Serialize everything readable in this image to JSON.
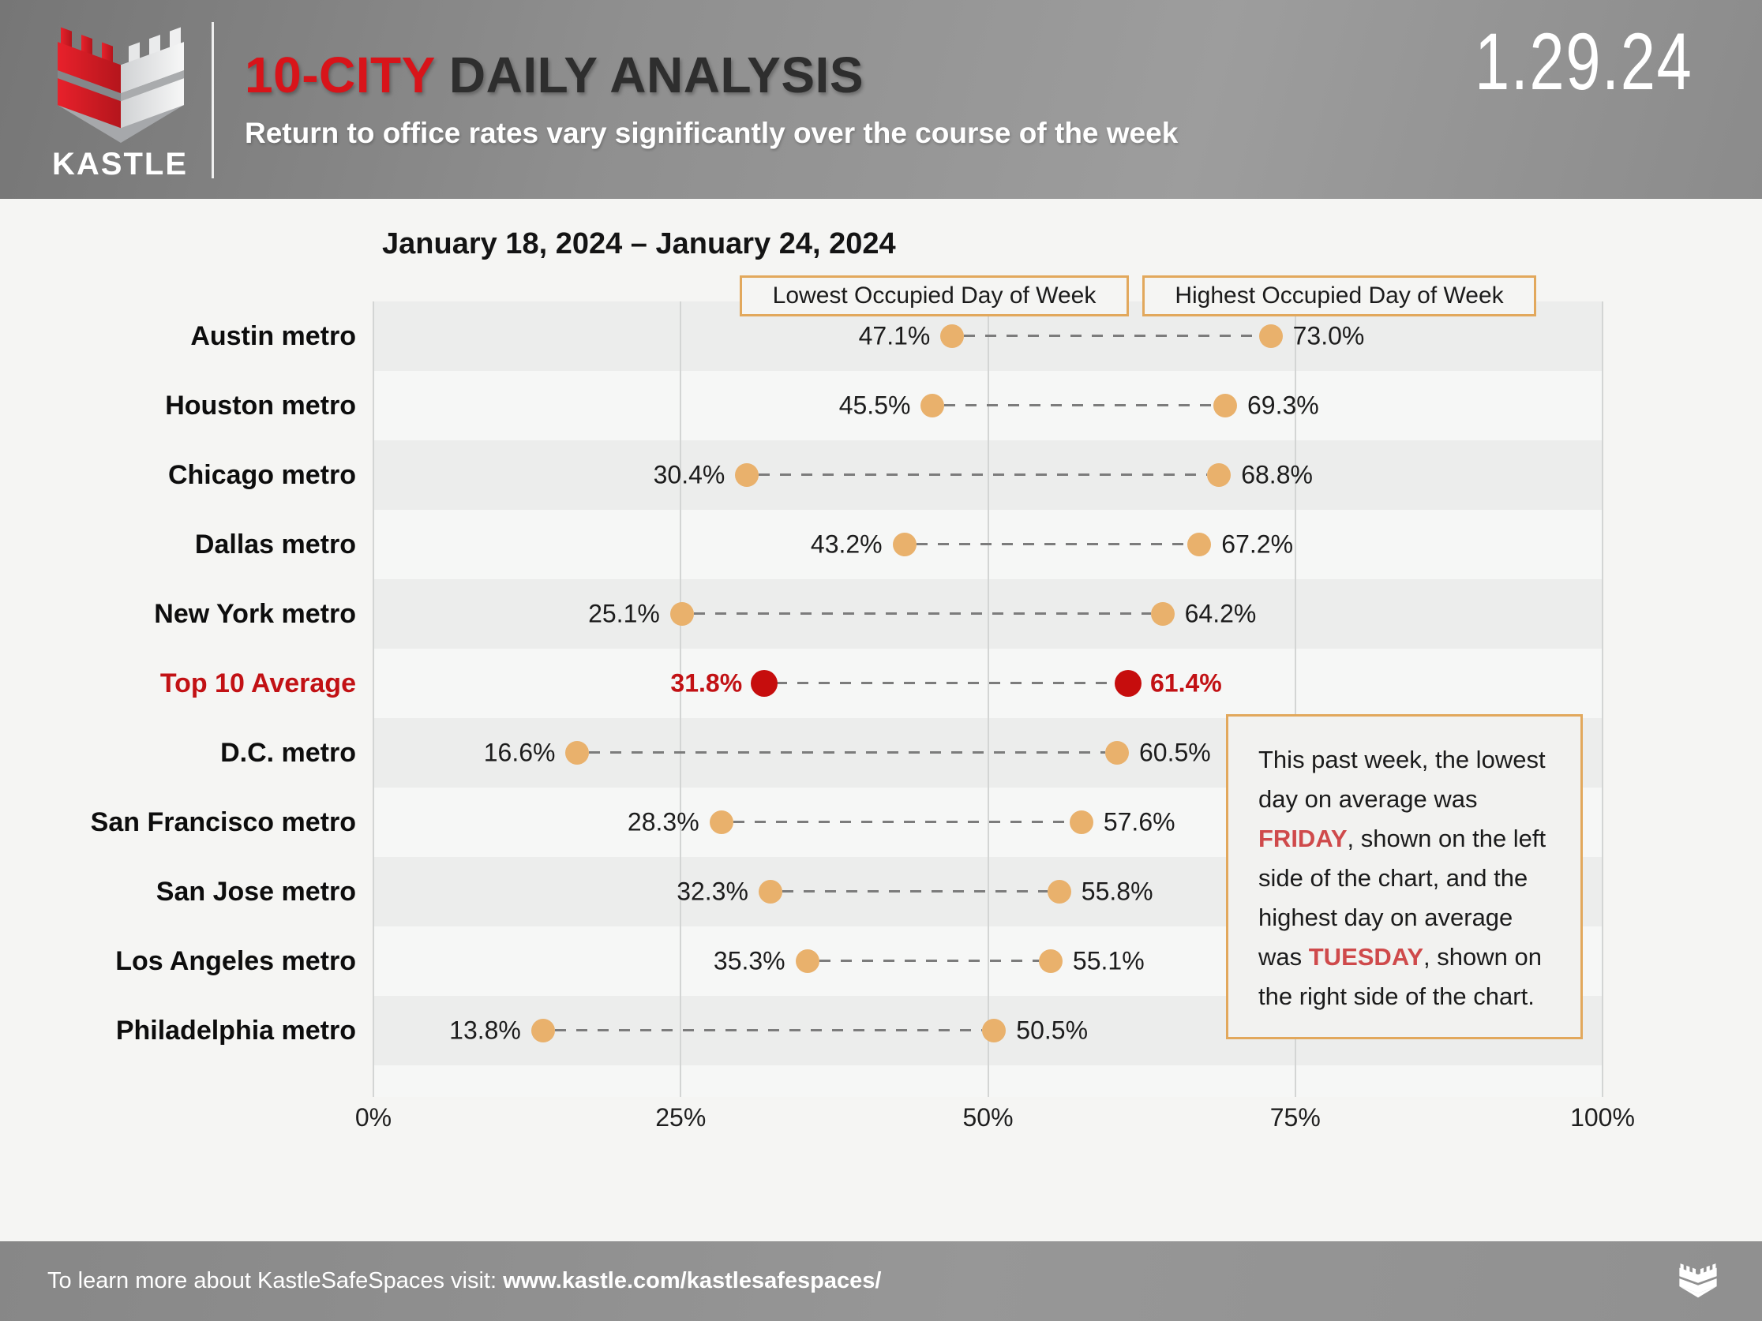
{
  "header": {
    "brand": "KASTLE",
    "title_accent": "10-CITY",
    "title_rest": " DAILY ANALYSIS",
    "subtitle": "Return to office rates vary significantly over the course of the week",
    "date": "1.29.24"
  },
  "chart": {
    "title": "January 18, 2024 – January 24, 2024",
    "legend_low": "Lowest Occupied Day of Week",
    "legend_high": "Highest Occupied Day of Week"
  },
  "chart_data": {
    "type": "scatter",
    "variant": "dumbbell-range",
    "categories": [
      "Austin metro",
      "Houston metro",
      "Chicago metro",
      "Dallas metro",
      "New York metro",
      "Top 10 Average",
      "D.C. metro",
      "San Francisco metro",
      "San Jose metro",
      "Los Angeles metro",
      "Philadelphia metro"
    ],
    "series": [
      {
        "name": "Lowest Occupied Day of Week",
        "values": [
          47.1,
          45.5,
          30.4,
          43.2,
          25.1,
          31.8,
          16.6,
          28.3,
          32.3,
          35.3,
          13.8
        ]
      },
      {
        "name": "Highest Occupied Day of Week",
        "values": [
          73.0,
          69.3,
          68.8,
          67.2,
          64.2,
          61.4,
          60.5,
          57.6,
          55.8,
          55.1,
          50.5
        ]
      }
    ],
    "value_labels_low": [
      "47.1%",
      "45.5%",
      "30.4%",
      "43.2%",
      "25.1%",
      "31.8%",
      "16.6%",
      "28.3%",
      "32.3%",
      "35.3%",
      "13.8%"
    ],
    "value_labels_high": [
      "73.0%",
      "69.3%",
      "68.8%",
      "67.2%",
      "64.2%",
      "61.4%",
      "60.5%",
      "57.6%",
      "55.8%",
      "55.1%",
      "50.5%"
    ],
    "highlight_category": "Top 10 Average",
    "x_ticks": {
      "labels": [
        "0%",
        "25%",
        "50%",
        "75%",
        "100%"
      ],
      "values": [
        0,
        25,
        50,
        75,
        100
      ]
    },
    "xlim": [
      0,
      100
    ],
    "grid": "vertical",
    "legend_position": "top"
  },
  "annotation": {
    "part1": "This past week, the lowest day on average was ",
    "low_day": "FRIDAY",
    "part2": ", shown on the left side of the chart, and the highest day on average was ",
    "high_day": "TUESDAY",
    "part3": ", shown on the right side of the chart."
  },
  "footer": {
    "text": "To learn more about KastleSafeSpaces visit: ",
    "link": "www.kastle.com/kastlesafespaces/"
  },
  "colors": {
    "brand_red": "#D8141A",
    "highlight_red": "#C21114",
    "dot_red": "#C60D0D",
    "annotation_red": "#CF4A4B",
    "dot_orange": "#E9B16C",
    "accent_border": "#E2A85C",
    "dash_gray": "#7C7C7C"
  }
}
